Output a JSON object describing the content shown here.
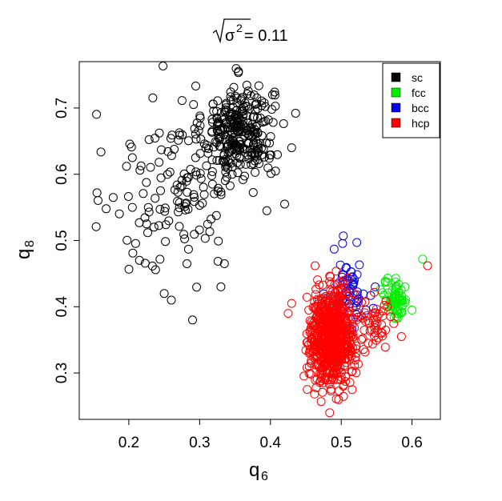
{
  "chart_data": {
    "type": "scatter",
    "title_sigma": "σ",
    "title_exponent": "2",
    "title_value": " = 0.11",
    "xlabel_base": "q",
    "xlabel_sub": "6",
    "ylabel_base": "q",
    "ylabel_sub": "8",
    "xlim": [
      0.13,
      0.64
    ],
    "ylim": [
      0.23,
      0.77
    ],
    "x_ticks": [
      0.2,
      0.3,
      0.4,
      0.5,
      0.6
    ],
    "x_tick_labels": [
      "0.2",
      "0.3",
      "0.4",
      "0.5",
      "0.6"
    ],
    "y_ticks": [
      0.3,
      0.4,
      0.5,
      0.6,
      0.7
    ],
    "y_tick_labels": [
      "0.3",
      "0.4",
      "0.5",
      "0.6",
      "0.7"
    ],
    "grid": false,
    "legend_position": "top-right",
    "series": [
      {
        "name": "sc",
        "color": "#000000",
        "clusters": [
          {
            "cx": 0.355,
            "cy": 0.665,
            "sx": 0.025,
            "sy": 0.035,
            "n": 300
          },
          {
            "cx": 0.27,
            "cy": 0.58,
            "sx": 0.045,
            "sy": 0.07,
            "n": 120
          }
        ],
        "points": [
          [
            0.155,
            0.572
          ],
          [
            0.168,
            0.548
          ],
          [
            0.178,
            0.565
          ],
          [
            0.205,
            0.55
          ],
          [
            0.215,
            0.47
          ],
          [
            0.205,
            0.625
          ],
          [
            0.29,
            0.38
          ],
          [
            0.335,
            0.465
          ],
          [
            0.403,
            0.72
          ],
          [
            0.42,
            0.555
          ],
          [
            0.43,
            0.64
          ],
          [
            0.33,
            0.43
          ],
          [
            0.25,
            0.42
          ],
          [
            0.395,
            0.545
          ],
          [
            0.26,
            0.41
          ]
        ]
      },
      {
        "name": "fcc",
        "color": "#00ee00",
        "clusters": [
          {
            "cx": 0.577,
            "cy": 0.41,
            "sx": 0.008,
            "sy": 0.015,
            "n": 70
          }
        ],
        "points": [
          [
            0.615,
            0.472
          ],
          [
            0.6,
            0.395
          ],
          [
            0.59,
            0.43
          ]
        ]
      },
      {
        "name": "bcc",
        "color": "#0000ee",
        "clusters": [
          {
            "cx": 0.51,
            "cy": 0.42,
            "sx": 0.012,
            "sy": 0.025,
            "n": 60
          }
        ],
        "points": [
          [
            0.503,
            0.507
          ],
          [
            0.49,
            0.487
          ],
          [
            0.522,
            0.497
          ],
          [
            0.548,
            0.43
          ],
          [
            0.535,
            0.395
          ]
        ]
      },
      {
        "name": "hcp",
        "color": "#ff0000",
        "clusters": [
          {
            "cx": 0.487,
            "cy": 0.355,
            "sx": 0.016,
            "sy": 0.035,
            "n": 700
          },
          {
            "cx": 0.548,
            "cy": 0.375,
            "sx": 0.01,
            "sy": 0.02,
            "n": 40
          }
        ],
        "points": [
          [
            0.622,
            0.462
          ],
          [
            0.585,
            0.355
          ],
          [
            0.497,
            0.273
          ],
          [
            0.43,
            0.405
          ],
          [
            0.425,
            0.39
          ],
          [
            0.463,
            0.462
          ],
          [
            0.565,
            0.4
          ],
          [
            0.57,
            0.385
          ]
        ]
      }
    ]
  }
}
